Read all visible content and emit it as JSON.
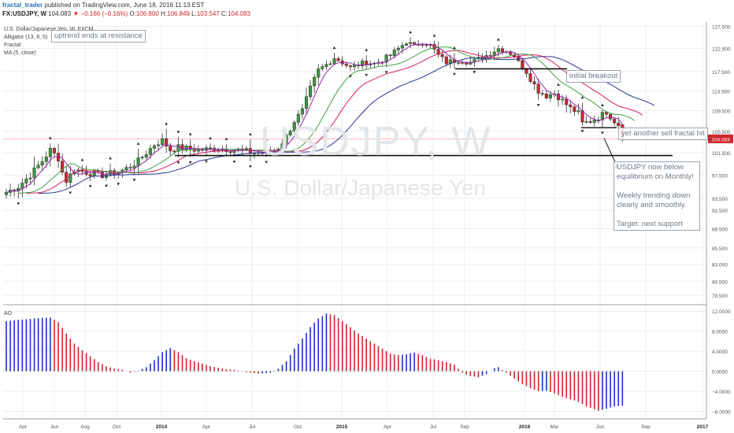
{
  "header": {
    "user": "fractal_trader",
    "published": "published on TradingView.com, June 18, 2016 11:13 EST",
    "symbol": "FX:USDJPY, W",
    "last": "104.083",
    "change": "▼ −0.166 (−0.16%)",
    "open_label": "O:",
    "open": "106.800",
    "high_label": "H:",
    "high": "106.849",
    "low_label": "L:",
    "low": "103.547",
    "close_label": "C:",
    "close": "104.083"
  },
  "indicators": {
    "name": "U.S. Dollar/Japanese Yen, W, FXCM",
    "alligator": "Alligator (13, 8, 5)",
    "fractal": "Fractal",
    "ma": "MA (5, close)",
    "ao": "AO"
  },
  "watermark": {
    "symbol": "USDJPY, W",
    "name": "U.S. Dollar/Japanese Yen"
  },
  "annotations": {
    "uptrend": "uptrend ends at resistance",
    "initial_breakout": "initial breakout",
    "sell_fractal": "yet another sell fractal hit",
    "summary_lines": [
      "USDJPY now below",
      "equilibrium on Monthly!",
      "",
      "Weekly trending down",
      "clearly and smoothly.",
      "",
      "Target: next support"
    ]
  },
  "price_badge": "104.083",
  "colors": {
    "up": "#3a9a3a",
    "down": "#d0262a",
    "border": "#333333",
    "jaw": "#283593",
    "teeth": "#d81b60",
    "lips": "#43a047",
    "ma": "#9c27b0",
    "ao_up": "#1f2fc8",
    "ao_down": "#d0262a",
    "grid": "#e8ecef"
  },
  "chart_data": {
    "type": "candlestick",
    "timeframe": "weekly",
    "x_ticks": [
      "Apr",
      "Jun",
      "Aug",
      "Oct",
      "2014",
      "Apr",
      "Jul",
      "Oct",
      "2015",
      "Apr",
      "Jul",
      "Sep",
      "2016",
      "Mar",
      "Jun",
      "Sep",
      "2017"
    ],
    "price_axis": {
      "ticks": [
        "127.500",
        "122.500",
        "117.500",
        "113.500",
        "109.500",
        "105.500",
        "101.500",
        "97.500",
        "93.500",
        "91.500",
        "88.500",
        "85.500",
        "83.000",
        "80.500",
        "78.500"
      ],
      "range": [
        77.5,
        128.5
      ]
    },
    "ao_axis": {
      "ticks": [
        "12.0000",
        "8.0000",
        "4.0000",
        "0.0000",
        "-4.0000",
        "-8.0000"
      ],
      "range": [
        -9.5,
        12.8
      ]
    },
    "levels": [
      {
        "label": "support",
        "value": 101.0
      },
      {
        "label": "resistance",
        "value": 118.1
      },
      {
        "label": "sell fractal",
        "value": 106.2
      }
    ],
    "close_path": [
      [
        0,
        94.5
      ],
      [
        3,
        95.5
      ],
      [
        6,
        97.5
      ],
      [
        9,
        100.0
      ],
      [
        11,
        102.0
      ],
      [
        13,
        100.5
      ],
      [
        14,
        98.0
      ],
      [
        15,
        96.5
      ],
      [
        17,
        98.5
      ],
      [
        20,
        98.0
      ],
      [
        24,
        97.5
      ],
      [
        28,
        98.0
      ],
      [
        31,
        99.0
      ],
      [
        33,
        100.0
      ],
      [
        35,
        101.5
      ],
      [
        37,
        103.0
      ],
      [
        39,
        103.8
      ],
      [
        41,
        102.0
      ],
      [
        43,
        102.5
      ],
      [
        48,
        102.0
      ],
      [
        53,
        102.3
      ],
      [
        58,
        102.0
      ],
      [
        62,
        101.5
      ],
      [
        66,
        101.6
      ],
      [
        68,
        102.5
      ],
      [
        70,
        104.5
      ],
      [
        72,
        107.5
      ],
      [
        74,
        109.5
      ],
      [
        76,
        114.0
      ],
      [
        78,
        117.8
      ],
      [
        80,
        119.0
      ],
      [
        82,
        120.5
      ],
      [
        84,
        119.5
      ],
      [
        86,
        118.3
      ],
      [
        88,
        119.0
      ],
      [
        90,
        119.5
      ],
      [
        92,
        119.2
      ],
      [
        94,
        120.0
      ],
      [
        96,
        121.0
      ],
      [
        98,
        122.5
      ],
      [
        100,
        124.0
      ],
      [
        102,
        123.0
      ],
      [
        104,
        124.0
      ],
      [
        106,
        123.2
      ],
      [
        108,
        121.0
      ],
      [
        110,
        119.5
      ],
      [
        113,
        120.0
      ],
      [
        116,
        119.5
      ],
      [
        119,
        120.5
      ],
      [
        121,
        121.5
      ],
      [
        123,
        122.5
      ],
      [
        125,
        122.0
      ],
      [
        127,
        121.0
      ],
      [
        128,
        119.5
      ],
      [
        130,
        117.5
      ],
      [
        131,
        116.0
      ],
      [
        133,
        113.5
      ],
      [
        135,
        112.5
      ],
      [
        137,
        113.0
      ],
      [
        139,
        111.5
      ],
      [
        141,
        110.0
      ],
      [
        143,
        109.0
      ],
      [
        144,
        107.0
      ],
      [
        146,
        107.5
      ],
      [
        148,
        108.2
      ],
      [
        150,
        109.3
      ],
      [
        152,
        107.5
      ],
      [
        153,
        106.8
      ],
      [
        154,
        104.08
      ]
    ],
    "ao_path": [
      [
        0,
        10.0
      ],
      [
        4,
        10.3
      ],
      [
        8,
        10.6
      ],
      [
        11,
        10.7
      ],
      [
        13,
        9.8
      ],
      [
        15,
        7.5
      ],
      [
        17,
        5.5
      ],
      [
        19,
        4.2
      ],
      [
        21,
        3.0
      ],
      [
        23,
        1.8
      ],
      [
        25,
        1.0
      ],
      [
        27,
        0.5
      ],
      [
        29,
        0.3
      ],
      [
        31,
        -0.3
      ],
      [
        33,
        0.1
      ],
      [
        35,
        0.8
      ],
      [
        37,
        2.2
      ],
      [
        39,
        3.8
      ],
      [
        41,
        4.6
      ],
      [
        43,
        3.8
      ],
      [
        45,
        2.6
      ],
      [
        47,
        2.0
      ],
      [
        49,
        1.5
      ],
      [
        51,
        1.0
      ],
      [
        53,
        0.7
      ],
      [
        55,
        0.4
      ],
      [
        57,
        0.3
      ],
      [
        60,
        -0.2
      ],
      [
        63,
        -0.5
      ],
      [
        66,
        -0.3
      ],
      [
        68,
        0.5
      ],
      [
        70,
        2.0
      ],
      [
        72,
        4.5
      ],
      [
        74,
        6.5
      ],
      [
        76,
        8.8
      ],
      [
        78,
        10.5
      ],
      [
        80,
        11.5
      ],
      [
        82,
        11.2
      ],
      [
        84,
        10.0
      ],
      [
        86,
        8.8
      ],
      [
        88,
        7.5
      ],
      [
        90,
        6.5
      ],
      [
        92,
        5.5
      ],
      [
        94,
        4.5
      ],
      [
        96,
        3.5
      ],
      [
        98,
        3.2
      ],
      [
        100,
        3.4
      ],
      [
        102,
        3.7
      ],
      [
        104,
        3.2
      ],
      [
        106,
        2.5
      ],
      [
        108,
        2.2
      ],
      [
        110,
        1.8
      ],
      [
        112,
        1.3
      ],
      [
        114,
        -0.3
      ],
      [
        116,
        -1.0
      ],
      [
        118,
        -1.2
      ],
      [
        120,
        -0.6
      ],
      [
        122,
        0.6
      ],
      [
        123,
        0.8
      ],
      [
        125,
        -0.3
      ],
      [
        127,
        -1.5
      ],
      [
        129,
        -2.6
      ],
      [
        131,
        -3.4
      ],
      [
        133,
        -4.0
      ],
      [
        135,
        -3.9
      ],
      [
        137,
        -4.4
      ],
      [
        139,
        -5.1
      ],
      [
        141,
        -5.6
      ],
      [
        143,
        -6.1
      ],
      [
        145,
        -7.0
      ],
      [
        147,
        -7.6
      ],
      [
        148,
        -7.9
      ],
      [
        150,
        -7.5
      ],
      [
        152,
        -7.0
      ],
      [
        154,
        -6.9
      ]
    ]
  }
}
